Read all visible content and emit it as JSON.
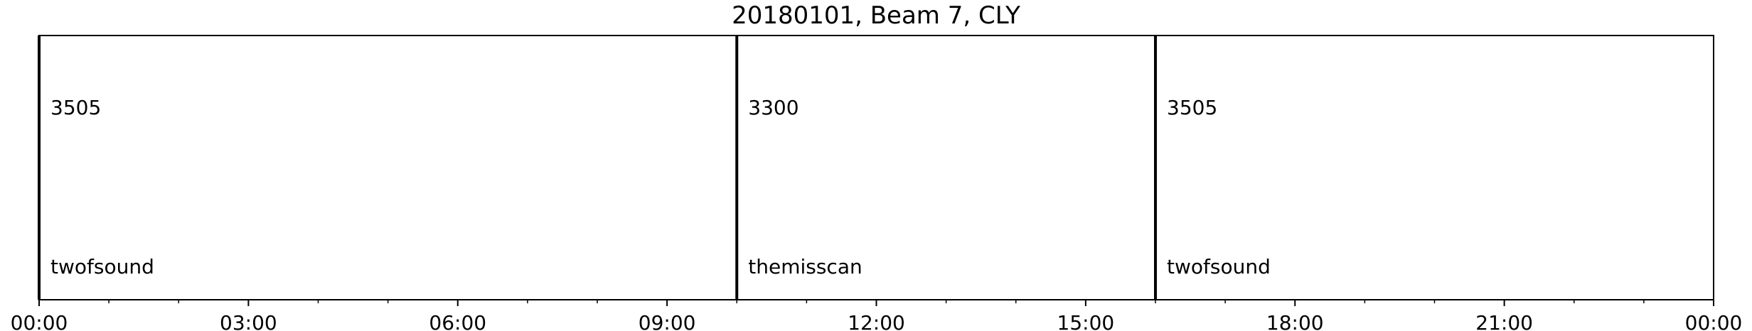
{
  "chart_data": {
    "type": "timeline",
    "title": "20180101, Beam 7, CLY",
    "xlabel": "",
    "ylabel": "",
    "x_range_hours": [
      0,
      24
    ],
    "grid": false,
    "legend": "none",
    "major_tick_labels": [
      "00:00",
      "03:00",
      "06:00",
      "09:00",
      "12:00",
      "15:00",
      "18:00",
      "21:00",
      "00:00"
    ],
    "major_tick_hours": [
      0,
      3,
      6,
      9,
      12,
      15,
      18,
      21,
      24
    ],
    "minor_tick_interval_hours": 1,
    "segments": [
      {
        "start_hours": 0,
        "end_hours": 10,
        "cpid": "3505",
        "name": "twofsound"
      },
      {
        "start_hours": 10,
        "end_hours": 16,
        "cpid": "3300",
        "name": "themisscan"
      },
      {
        "start_hours": 16,
        "end_hours": 24,
        "cpid": "3505",
        "name": "twofsound"
      }
    ],
    "boundary_hours": [
      0,
      10,
      16
    ],
    "colors": {
      "line": "#000000",
      "background": "#ffffff"
    }
  }
}
